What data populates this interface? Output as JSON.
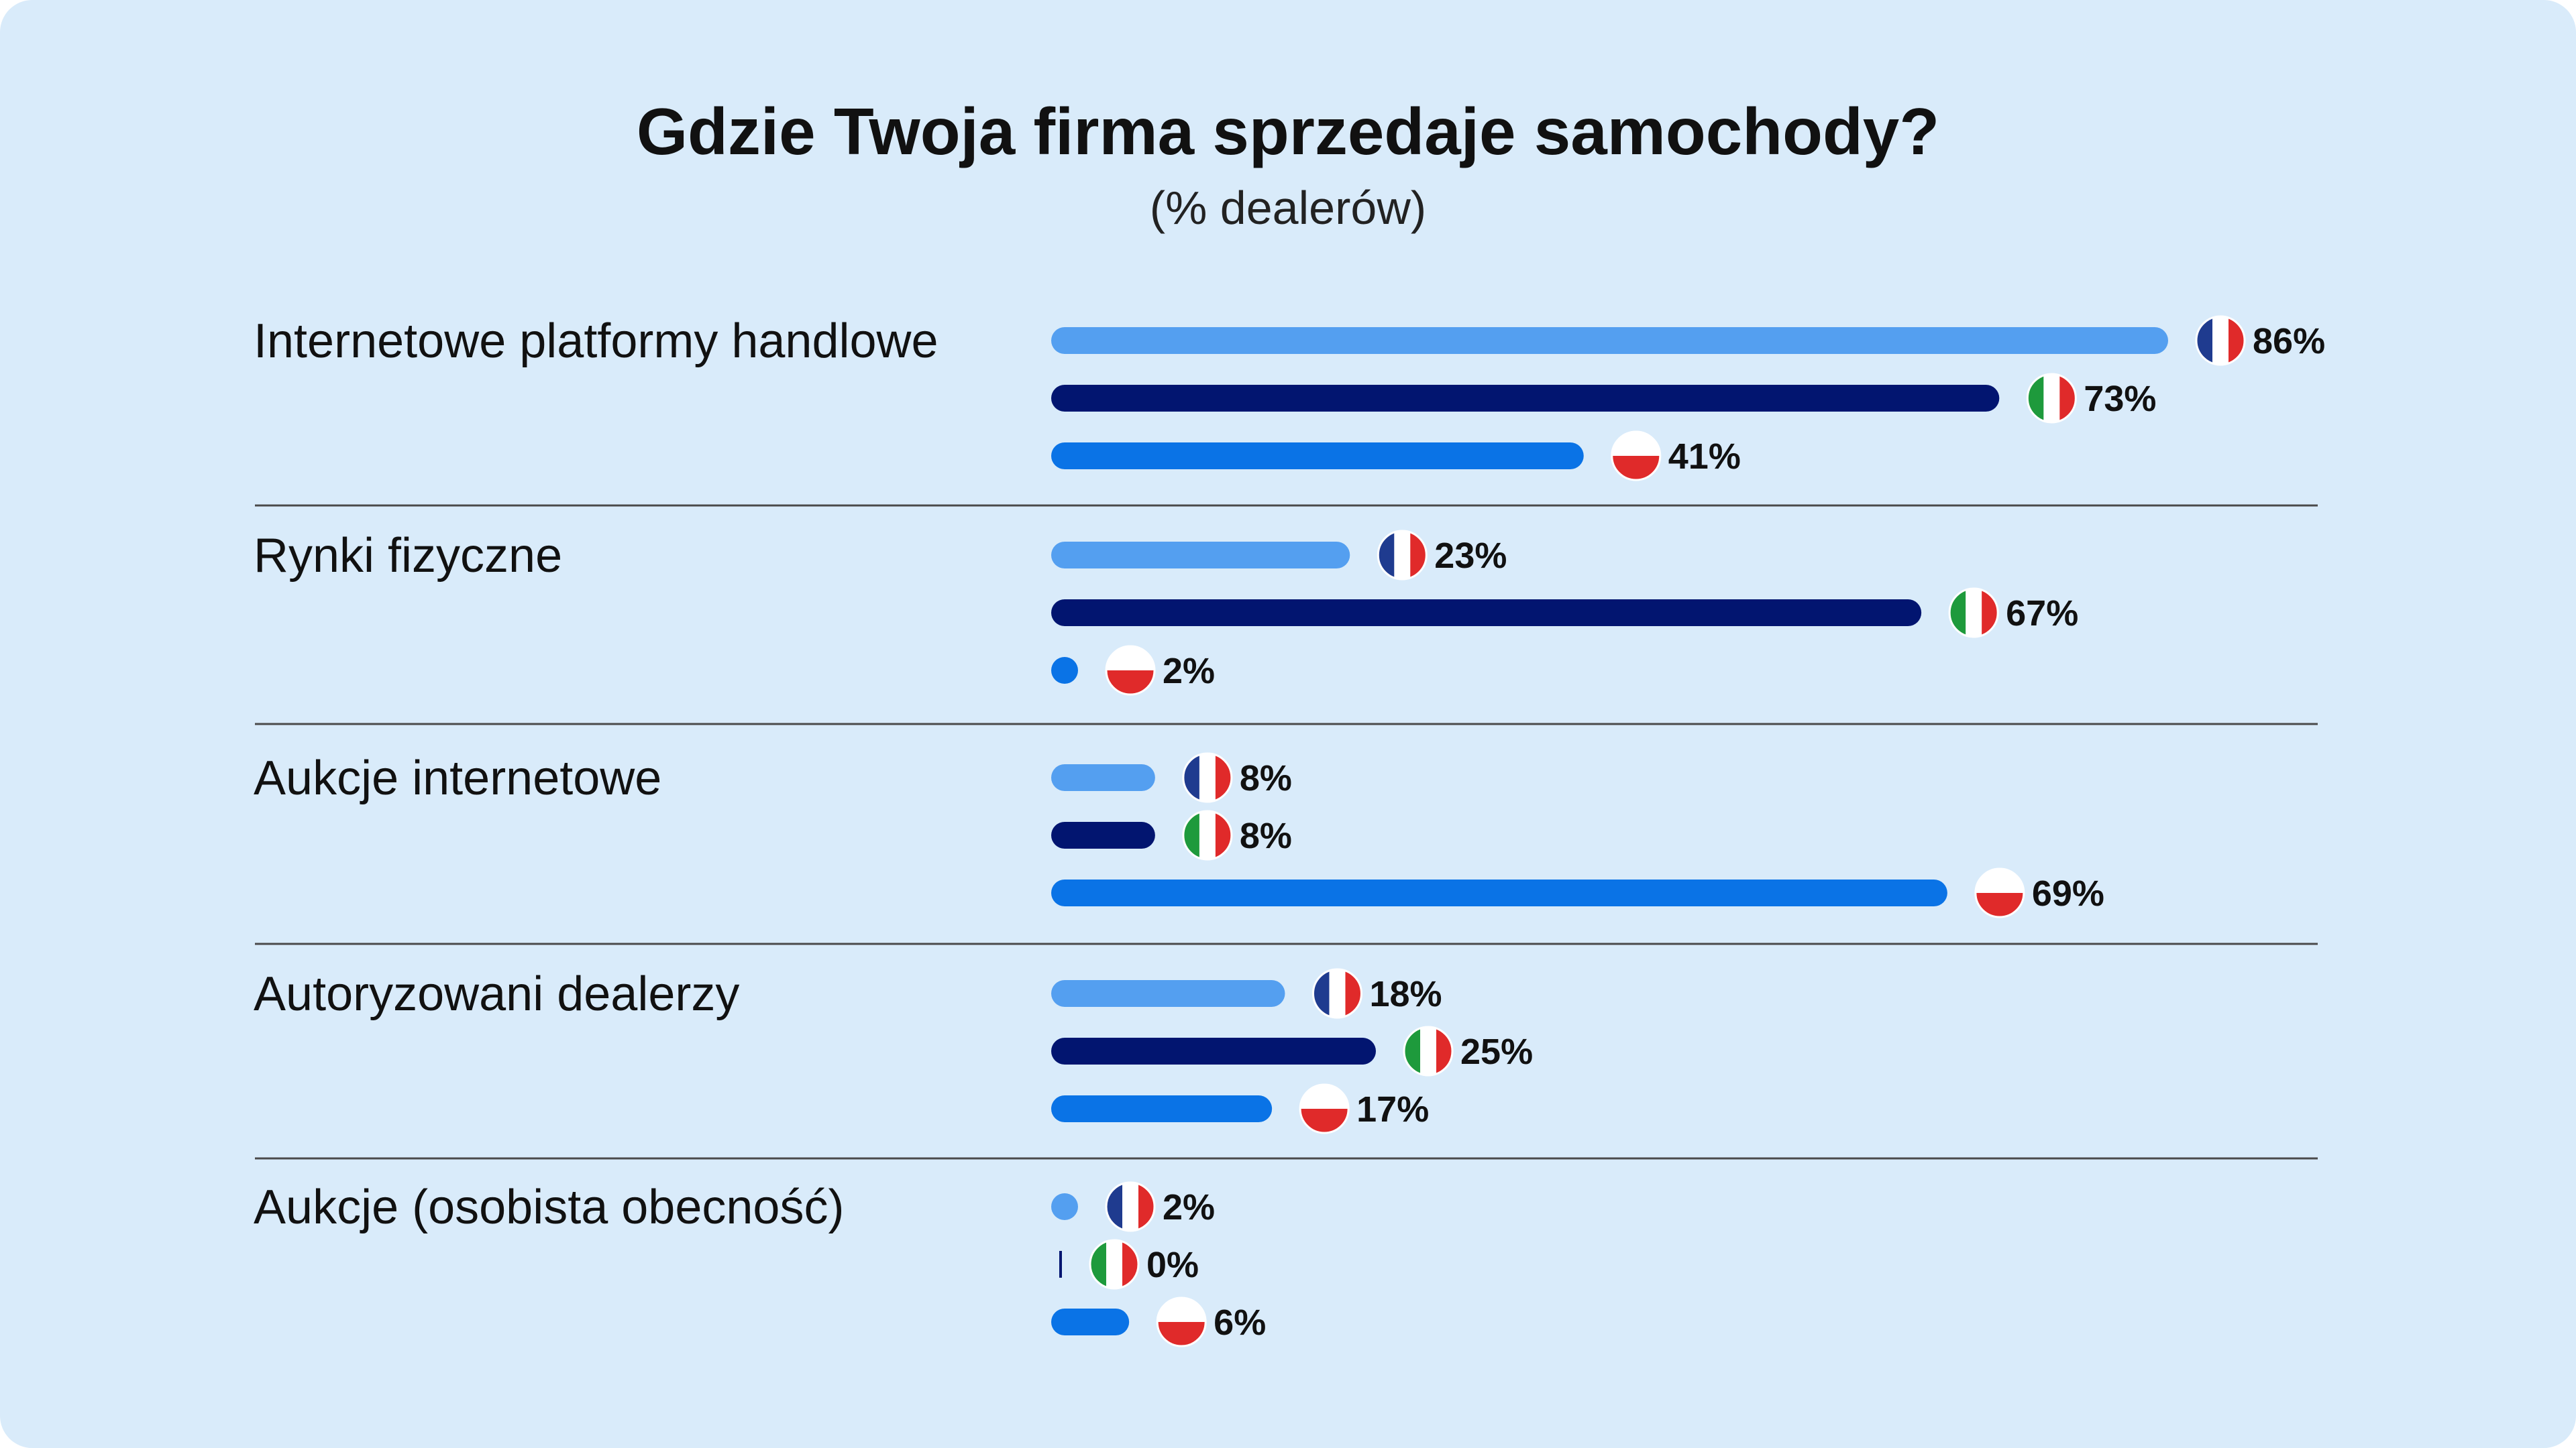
{
  "title": "Gdzie Twoja firma sprzedaje samochody?",
  "subtitle": "(% dealerów)",
  "colors": {
    "background": "#d9ebfa",
    "france_bar": "#549ff0",
    "italy_bar": "#021570",
    "poland_bar": "#0a73e6",
    "divider": "#4a4a4a"
  },
  "chart_data": {
    "type": "bar",
    "orientation": "horizontal",
    "xlim": [
      0,
      100
    ],
    "categories": [
      "Internetowe platformy handlowe",
      "Rynki fizyczne",
      "Aukcje internetowe",
      "Autoryzowani dealerzy",
      "Aukcje (osobista obecność)"
    ],
    "series": [
      {
        "key": "france",
        "flag_icon": "france-flag-icon",
        "values": [
          86,
          23,
          8,
          18,
          2
        ],
        "labels": [
          "86%",
          "23%",
          "8%",
          "18%",
          "2%"
        ]
      },
      {
        "key": "italy",
        "flag_icon": "italy-flag-icon",
        "values": [
          73,
          67,
          8,
          25,
          0
        ],
        "labels": [
          "73%",
          "67%",
          "8%",
          "25%",
          "0%"
        ]
      },
      {
        "key": "poland",
        "flag_icon": "poland-flag-icon",
        "values": [
          41,
          2,
          69,
          17,
          6
        ],
        "labels": [
          "41%",
          "2%",
          "69%",
          "17%",
          "6%"
        ]
      }
    ]
  }
}
